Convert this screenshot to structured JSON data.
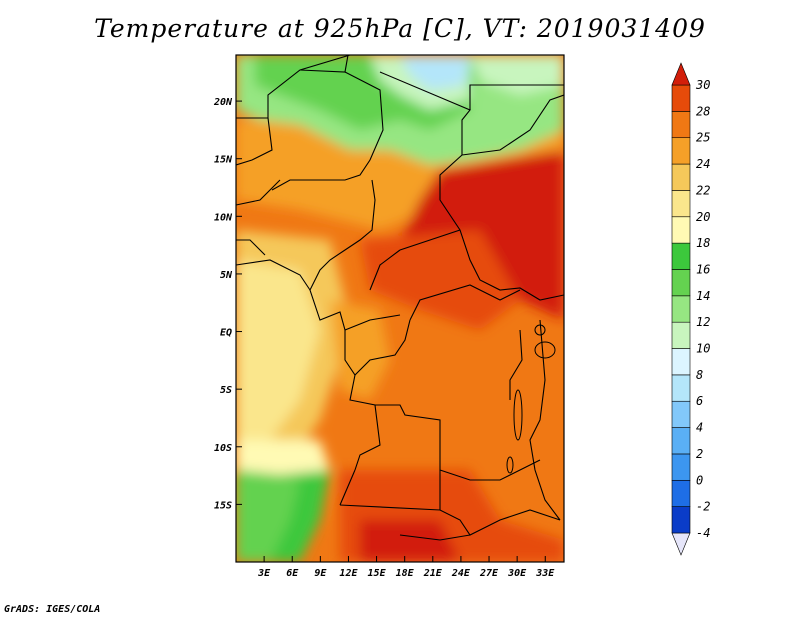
{
  "title": "Temperature at 925hPa [C], VT: 2019031409",
  "footer": "GrADS: IGES/COLA",
  "map": {
    "lon_range": [
      0,
      35
    ],
    "lat_range": [
      -20,
      24
    ],
    "x_ticks": [
      {
        "value": 3,
        "label": "3E"
      },
      {
        "value": 6,
        "label": "6E"
      },
      {
        "value": 9,
        "label": "9E"
      },
      {
        "value": 12,
        "label": "12E"
      },
      {
        "value": 15,
        "label": "15E"
      },
      {
        "value": 18,
        "label": "18E"
      },
      {
        "value": 21,
        "label": "21E"
      },
      {
        "value": 24,
        "label": "24E"
      },
      {
        "value": 27,
        "label": "27E"
      },
      {
        "value": 30,
        "label": "30E"
      },
      {
        "value": 33,
        "label": "33E"
      }
    ],
    "y_ticks": [
      {
        "value": 20,
        "label": "20N"
      },
      {
        "value": 15,
        "label": "15N"
      },
      {
        "value": 10,
        "label": "10N"
      },
      {
        "value": 5,
        "label": "5N"
      },
      {
        "value": 0,
        "label": "EQ"
      },
      {
        "value": -5,
        "label": "5S"
      },
      {
        "value": -10,
        "label": "10S"
      },
      {
        "value": -15,
        "label": "15S"
      }
    ]
  },
  "colorbar": {
    "labels": [
      "-4",
      "-2",
      "0",
      "2",
      "4",
      "6",
      "8",
      "10",
      "12",
      "14",
      "16",
      "18",
      "20",
      "22",
      "24",
      "25",
      "28",
      "30"
    ],
    "colors": [
      "#1e0a82",
      "#0a3cc8",
      "#1e6ee6",
      "#3c96f0",
      "#5aaff5",
      "#82c8fa",
      "#b4e6fa",
      "#dcf5ff",
      "#c8f5be",
      "#96e682",
      "#64d250",
      "#3cc83c",
      "#fffab4",
      "#fae68c",
      "#f5c85a",
      "#f5a028",
      "#f07814",
      "#e64b0a",
      "#d21e0a"
    ]
  }
}
